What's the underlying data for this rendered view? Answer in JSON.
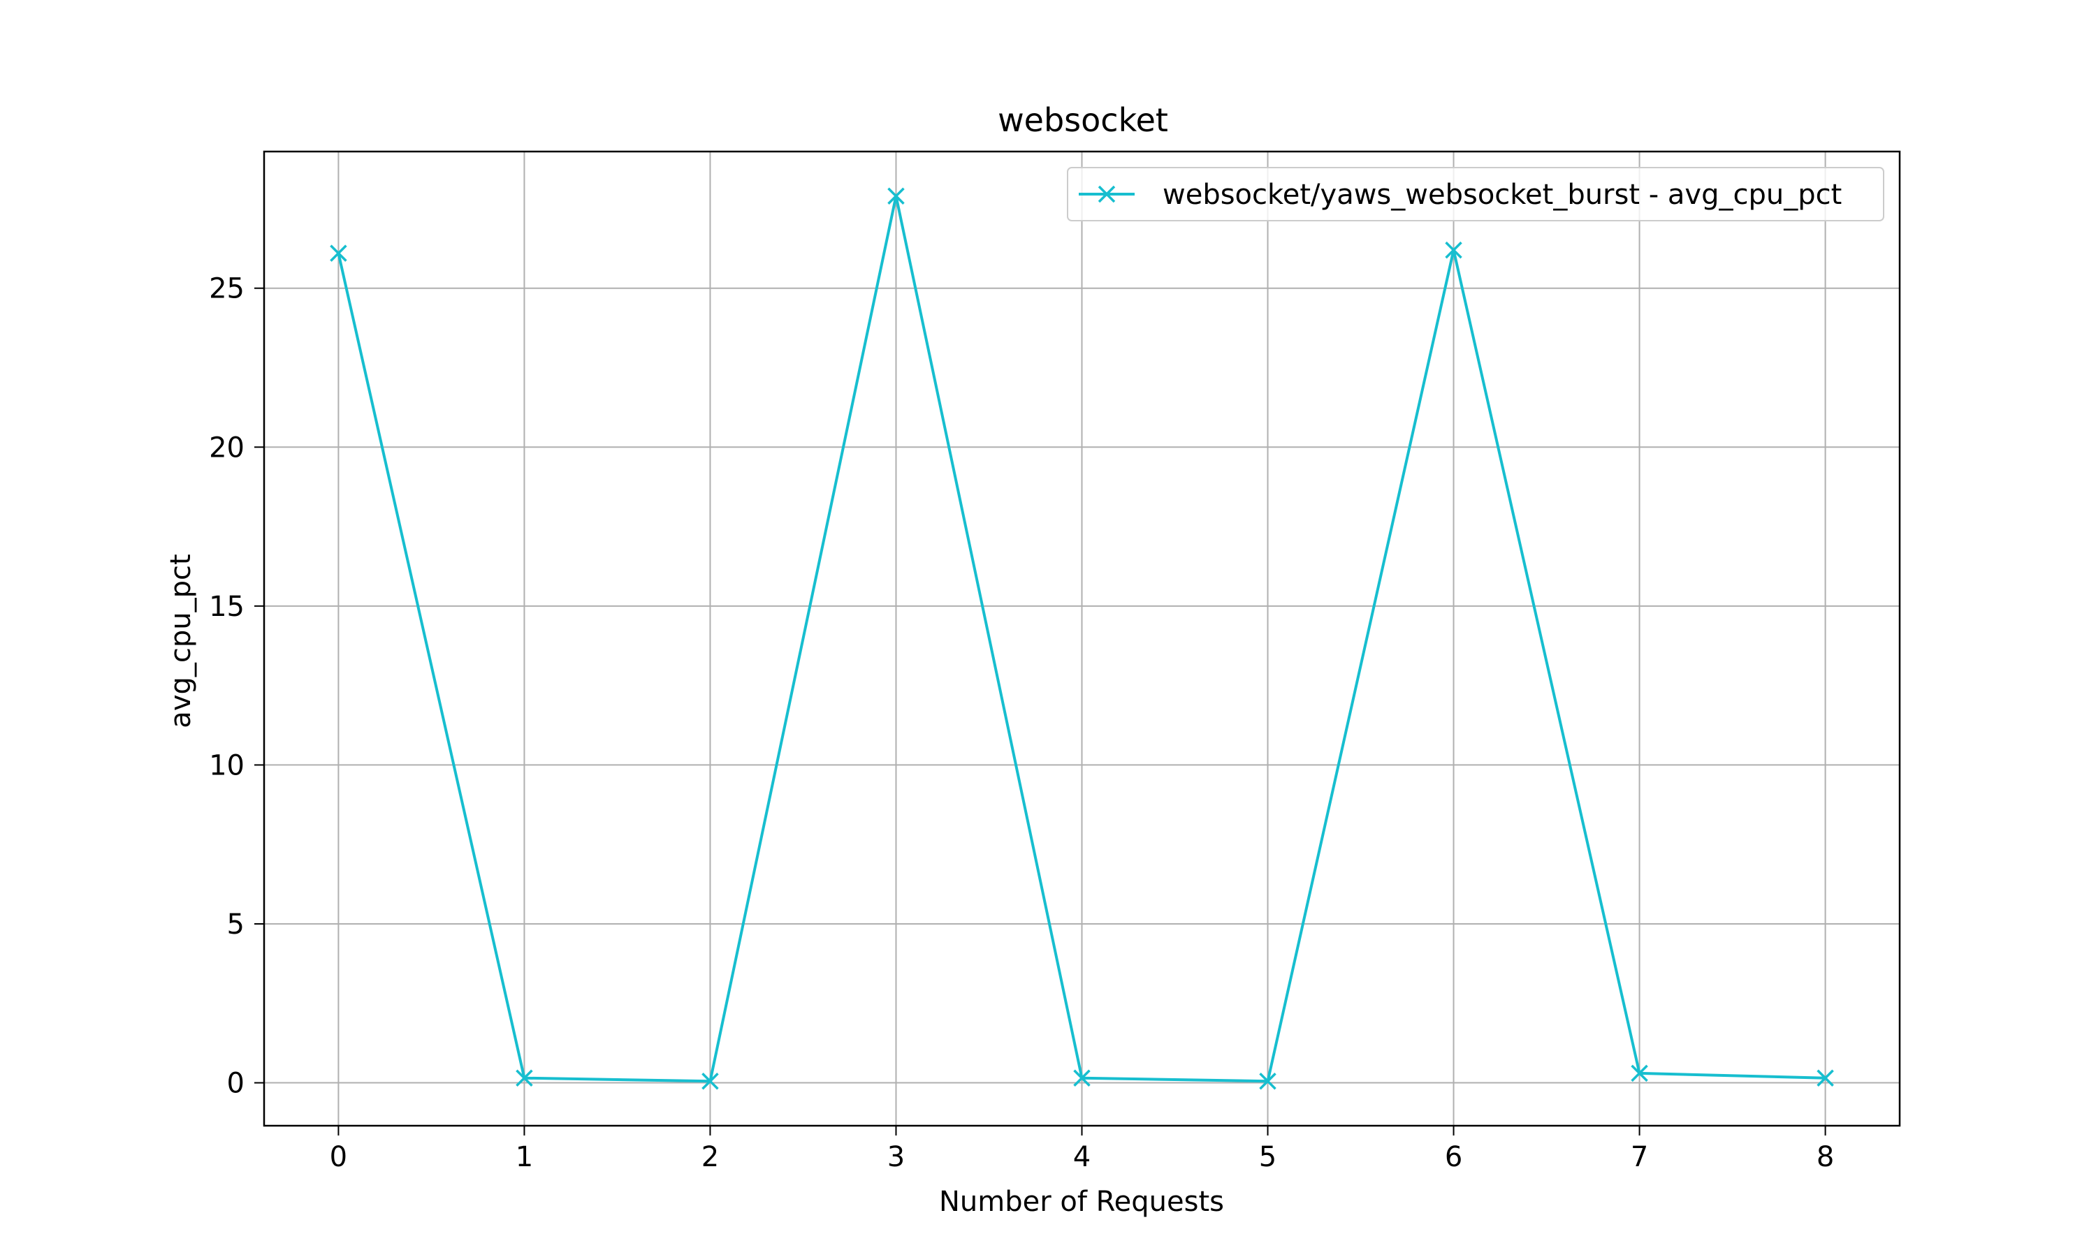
{
  "chart_data": {
    "type": "line",
    "title": "websocket",
    "xlabel": "Number of Requests",
    "ylabel": "avg_cpu_pct",
    "xlim": [
      -0.4,
      8.4
    ],
    "ylim": [
      -1.35,
      29.3
    ],
    "xticks": [
      0,
      1,
      2,
      3,
      4,
      5,
      6,
      7,
      8
    ],
    "yticks": [
      0,
      5,
      10,
      15,
      20,
      25
    ],
    "grid": true,
    "legend_position": "top-right",
    "series": [
      {
        "name": "websocket/yaws_websocket_burst - avg_cpu_pct",
        "color": "#17becf",
        "marker": "x",
        "x": [
          0,
          1,
          2,
          3,
          4,
          5,
          6,
          7,
          8
        ],
        "y": [
          26.1,
          0.15,
          0.05,
          27.9,
          0.15,
          0.05,
          26.2,
          0.3,
          0.15
        ]
      }
    ]
  }
}
